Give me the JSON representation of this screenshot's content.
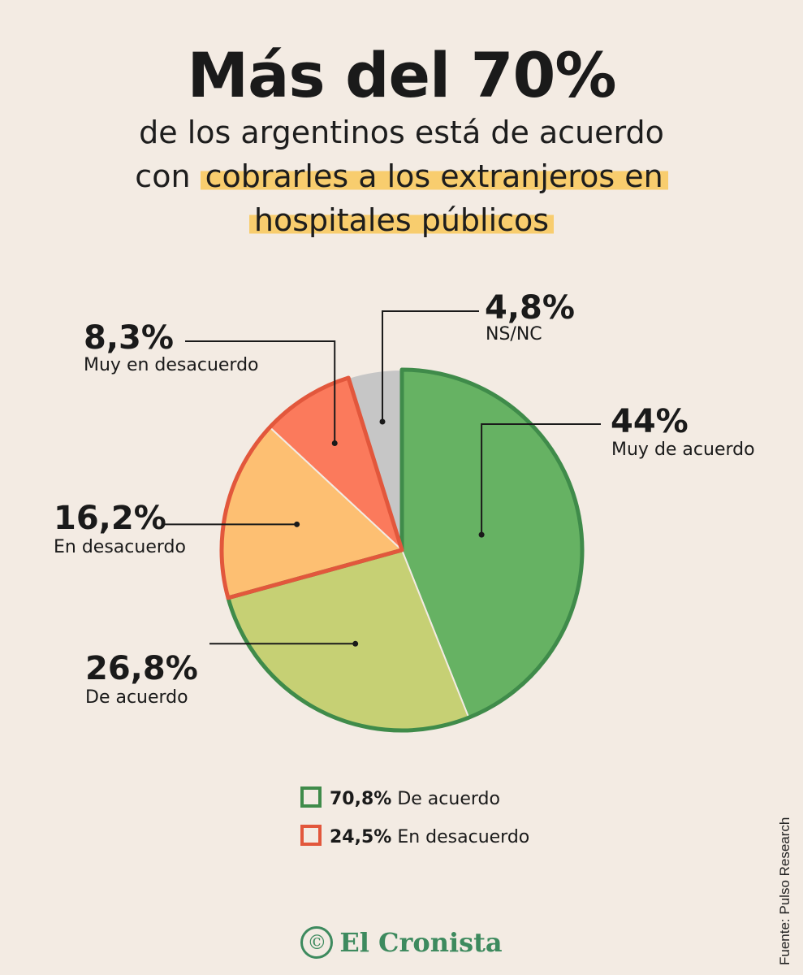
{
  "header": {
    "title": "Más del 70%",
    "subtitle_line1": "de los argentinos está de acuerdo",
    "subtitle_line2_prefix": "con",
    "subtitle_line2_highlight": "cobrarles a los extranjeros en",
    "subtitle_line3_highlight": "hospitales públicos"
  },
  "chart_data": {
    "type": "pie",
    "slices": [
      {
        "label": "Muy de acuerdo",
        "value_text": "44%",
        "value": 44.0,
        "color": "#66b263"
      },
      {
        "label": "De acuerdo",
        "value_text": "26,8%",
        "value": 26.8,
        "color": "#c6d074"
      },
      {
        "label": "En desacuerdo",
        "value_text": "16,2%",
        "value": 16.2,
        "color": "#fdbf72"
      },
      {
        "label": "Muy en desacuerdo",
        "value_text": "8,3%",
        "value": 8.3,
        "color": "#fb7a5c"
      },
      {
        "label": "NS/NC",
        "value_text": "4,8%",
        "value": 4.8,
        "color": "#c6c6c6"
      }
    ],
    "group_outline_colors": {
      "agree": "#3f8b4a",
      "disagree": "#e2573c"
    }
  },
  "legend": {
    "items": [
      {
        "value": "70,8%",
        "label": "De acuerdo",
        "color": "#3f8b4a"
      },
      {
        "value": "24,5%",
        "label": "En desacuerdo",
        "color": "#e2573c"
      }
    ]
  },
  "source": "Fuente: Pulso Research",
  "brand": {
    "icon": "copyright-icon",
    "name": "El Cronista"
  }
}
